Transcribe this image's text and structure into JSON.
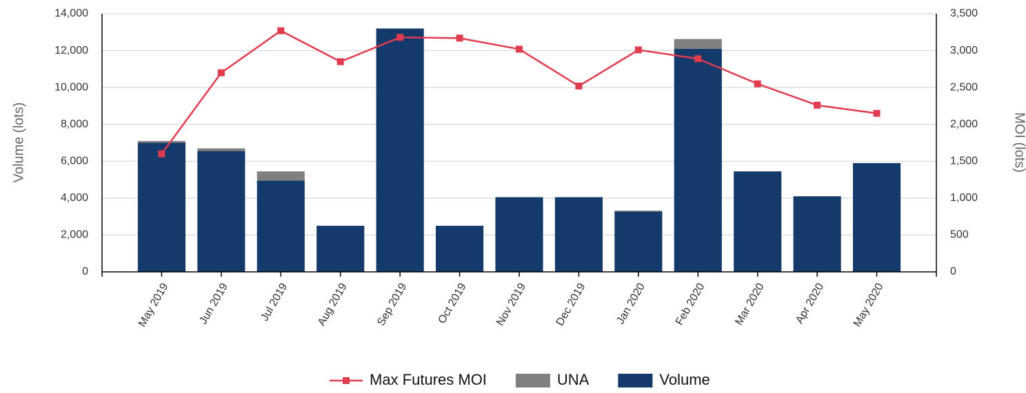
{
  "chart_data": {
    "type": "bar",
    "y_label": "Volume (lots)",
    "y2_label": "MOI (lots)",
    "categories": [
      "May 2019",
      "Jun 2019",
      "Jul 2019",
      "Aug 2019",
      "Sep 2019",
      "Oct 2019",
      "Nov 2019",
      "Dec 2019",
      "Jan 2020",
      "Feb 2020",
      "Mar 2020",
      "Apr 2020",
      "May 2020"
    ],
    "series": [
      {
        "name": "Max Futures MOI",
        "type": "line",
        "axis": "y2",
        "color": "#e03c50",
        "values": [
          1600,
          2700,
          3270,
          2850,
          3180,
          3170,
          3020,
          2520,
          3010,
          2890,
          2550,
          2260,
          2150
        ]
      },
      {
        "name": "UNA",
        "type": "bar",
        "color": "#808080",
        "values": [
          100,
          150,
          500,
          0,
          0,
          0,
          0,
          0,
          50,
          530,
          0,
          0,
          0
        ]
      },
      {
        "name": "Volume",
        "type": "bar",
        "color": "#133a6a",
        "values": [
          7000,
          6550,
          4950,
          2500,
          13200,
          2500,
          4050,
          4050,
          3270,
          12100,
          5450,
          4100,
          5900
        ]
      }
    ],
    "stacked": true,
    "ylim": [
      0,
      14000
    ],
    "yticks": [
      0,
      {
        "value": 2000,
        "label": "2,000"
      },
      {
        "value": 4000,
        "label": "4,000"
      },
      {
        "value": 6000,
        "label": "6,000"
      },
      {
        "value": 8000,
        "label": "8,000"
      },
      {
        "value": 10000,
        "label": "10,000"
      },
      {
        "value": 12000,
        "label": "12,000"
      },
      {
        "value": 14000,
        "label": "14,000"
      }
    ],
    "y2lim": [
      0,
      3500
    ],
    "y2ticks": [
      0,
      500,
      {
        "value": 1000,
        "label": "1,000"
      },
      {
        "value": 1500,
        "label": "1,500"
      },
      {
        "value": 2000,
        "label": "2,000"
      },
      {
        "value": 2500,
        "label": "2,500"
      },
      {
        "value": 3000,
        "label": "3,000"
      },
      {
        "value": 3500,
        "label": "3,500"
      }
    ],
    "grid": true,
    "legend": "bottom"
  }
}
